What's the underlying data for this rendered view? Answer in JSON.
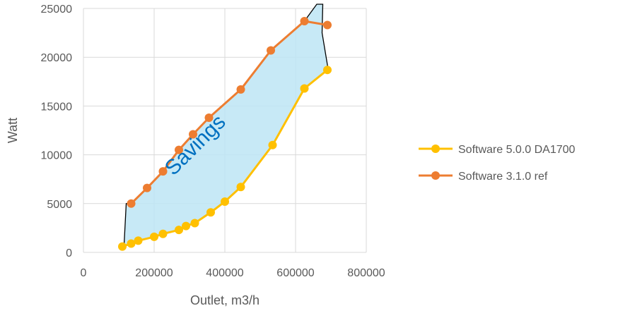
{
  "chart_data": {
    "type": "line",
    "title": "",
    "xlabel": "Outlet, m3/h",
    "ylabel": "Watt",
    "xlim": [
      0,
      800000
    ],
    "ylim": [
      0,
      25000
    ],
    "x_ticks": [
      "0",
      "200000",
      "400000",
      "600000",
      "800000"
    ],
    "y_ticks": [
      "0",
      "5000",
      "10000",
      "15000",
      "20000",
      "25000"
    ],
    "grid": true,
    "legend_position": "right",
    "annotation": "Savings",
    "colors": {
      "savings_fill": "#BDE5F5",
      "savings_outline": "#000000",
      "annotation": "#0070C0",
      "gridline": "#D9D9D9"
    },
    "series": [
      {
        "name": "Software 5.0.0 DA1700",
        "color": "#FFC000",
        "x": [
          110000,
          135000,
          155000,
          200000,
          225000,
          270000,
          290000,
          315000,
          360000,
          400000,
          445000,
          535000,
          625000,
          690000
        ],
        "y": [
          600,
          900,
          1200,
          1600,
          1900,
          2300,
          2700,
          3000,
          4100,
          5200,
          6700,
          11000,
          16800,
          18700
        ]
      },
      {
        "name": "Software 3.1.0 ref",
        "color": "#ED7D31",
        "x": [
          135000,
          180000,
          225000,
          270000,
          310000,
          355000,
          445000,
          530000,
          625000,
          690000
        ],
        "y": [
          5000,
          6600,
          8300,
          10500,
          12100,
          13800,
          16700,
          20700,
          23700,
          23300
        ]
      }
    ]
  }
}
